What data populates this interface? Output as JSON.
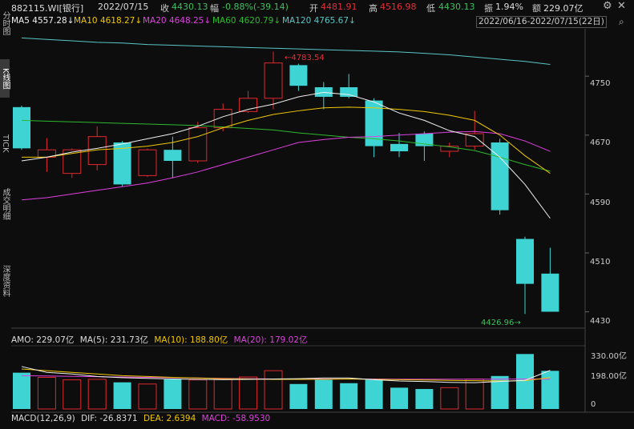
{
  "header": {
    "code": "882115.WI[银行]",
    "date": "2022/07/15",
    "close_label": "收",
    "close": "4430.13",
    "change_label": "幅",
    "change": "-0.88%(-39.14)",
    "open_label": "开",
    "open": "4481.91",
    "high_label": "高",
    "high": "4516.98",
    "low_label": "低",
    "low": "4430.13",
    "amp_label": "振",
    "amp": "1.94%",
    "amount_label": "额",
    "amount": "229.07亿"
  },
  "ma_legend": {
    "ma5": "MA5 4557.28↓",
    "ma10": "MA10 4618.27↓",
    "ma20": "MA20 4648.25↓",
    "ma60": "MA60 4620.79↓",
    "ma120": "MA120 4765.67↓"
  },
  "date_range": "2022/06/16-2022/07/15(22日)",
  "tabs": [
    "分时图",
    "K线图",
    "TICK",
    "成交明细",
    "深度资料"
  ],
  "price_axis": [
    "4750",
    "4670",
    "4590",
    "4510",
    "4430"
  ],
  "annotations": {
    "high": "4783.54",
    "low": "4426.96"
  },
  "amo_legend": {
    "amo": "AMO: 229.07亿",
    "ma5": "MA(5): 231.73亿",
    "ma10": "MA(10): 188.80亿",
    "ma20": "MA(20): 179.02亿"
  },
  "vol_axis": [
    "330.00亿",
    "198.00亿",
    "0"
  ],
  "macd_legend": {
    "name": "MACD(12,26,9)",
    "dif": "DIF: -26.8371",
    "dea": "DEA: 2.6394",
    "macd": "MACD: -58.9530"
  },
  "colors": {
    "up": "#e0282e",
    "down": "#3ed4d4",
    "ma5": "#f0f0f0",
    "ma10": "#f0c800",
    "ma20": "#e040e0",
    "ma60": "#2db92d",
    "ma120": "#59c6c6"
  },
  "chart_data": {
    "type": "candlestick",
    "price_ylim": [
      4410,
      4810
    ],
    "volume_ylim": [
      0,
      370
    ],
    "candles": [
      {
        "o": 4708,
        "c": 4652,
        "h": 4710,
        "l": 4650
      },
      {
        "o": 4640,
        "c": 4650,
        "h": 4666,
        "l": 4620
      },
      {
        "o": 4618,
        "c": 4650,
        "h": 4652,
        "l": 4612
      },
      {
        "o": 4630,
        "c": 4668,
        "h": 4682,
        "l": 4622
      },
      {
        "o": 4660,
        "c": 4603,
        "h": 4662,
        "l": 4600
      },
      {
        "o": 4615,
        "c": 4650,
        "h": 4652,
        "l": 4613
      },
      {
        "o": 4650,
        "c": 4635,
        "h": 4668,
        "l": 4612
      },
      {
        "o": 4635,
        "c": 4680,
        "h": 4688,
        "l": 4632
      },
      {
        "o": 4680,
        "c": 4705,
        "h": 4713,
        "l": 4675
      },
      {
        "o": 4702,
        "c": 4720,
        "h": 4730,
        "l": 4700
      },
      {
        "o": 4720,
        "c": 4768,
        "h": 4783.54,
        "l": 4705
      },
      {
        "o": 4765,
        "c": 4737,
        "h": 4767,
        "l": 4730
      },
      {
        "o": 4735,
        "c": 4722,
        "h": 4742,
        "l": 4705
      },
      {
        "o": 4735,
        "c": 4722,
        "h": 4753,
        "l": 4720
      },
      {
        "o": 4717,
        "c": 4655,
        "h": 4720,
        "l": 4640
      },
      {
        "o": 4658,
        "c": 4648,
        "h": 4673,
        "l": 4640
      },
      {
        "o": 4672,
        "c": 4655,
        "h": 4675,
        "l": 4635
      },
      {
        "o": 4648,
        "c": 4655,
        "h": 4660,
        "l": 4640
      },
      {
        "o": 4655,
        "c": 4672,
        "h": 4703,
        "l": 4650
      },
      {
        "o": 4660,
        "c": 4568,
        "h": 4665,
        "l": 4562
      },
      {
        "o": 4529,
        "c": 4468,
        "h": 4532,
        "l": 4426.96
      },
      {
        "o": 4481.91,
        "c": 4430.13,
        "h": 4516.98,
        "l": 4430.13
      }
    ],
    "ma5": [
      4635,
      4640,
      4647,
      4652,
      4658,
      4665,
      4672,
      4682,
      4695,
      4705,
      4712,
      4722,
      4728,
      4725,
      4715,
      4700,
      4690,
      4676,
      4668,
      4640,
      4603,
      4557
    ],
    "ma10": [
      4640,
      4640,
      4645,
      4650,
      4652,
      4655,
      4660,
      4668,
      4680,
      4690,
      4698,
      4703,
      4707,
      4708,
      4707,
      4705,
      4702,
      4697,
      4690,
      4670,
      4642,
      4618
    ],
    "ma20": [
      4582,
      4585,
      4590,
      4595,
      4600,
      4605,
      4612,
      4620,
      4630,
      4640,
      4650,
      4660,
      4664,
      4667,
      4668,
      4670,
      4672,
      4674,
      4675,
      4672,
      4662,
      4648
    ],
    "ma60": [
      4690,
      4689,
      4688,
      4687,
      4686,
      4685,
      4684,
      4683,
      4681,
      4679,
      4677,
      4673,
      4670,
      4667,
      4665,
      4662,
      4658,
      4654,
      4649,
      4640,
      4630,
      4621
    ],
    "ma120": [
      4802,
      4800,
      4798,
      4796,
      4795,
      4793,
      4792,
      4791,
      4790,
      4789,
      4788,
      4787,
      4786,
      4785,
      4784,
      4783,
      4781,
      4779,
      4776,
      4773,
      4770,
      4766
    ],
    "volume": [
      218,
      190,
      175,
      178,
      160,
      150,
      178,
      175,
      178,
      192,
      230,
      150,
      175,
      155,
      175,
      128,
      120,
      128,
      180,
      198,
      330,
      229.07
    ],
    "vol_ma5": [
      255,
      220,
      210,
      195,
      188,
      184,
      180,
      178,
      176,
      178,
      180,
      182,
      186,
      186,
      176,
      168,
      165,
      160,
      158,
      165,
      172,
      231.73
    ],
    "vol_ma10": [
      240,
      230,
      220,
      210,
      200,
      195,
      190,
      186,
      182,
      180,
      178,
      178,
      178,
      180,
      178,
      176,
      174,
      172,
      170,
      168,
      170,
      188.8
    ],
    "vol_ma20": [
      200,
      198,
      196,
      194,
      192,
      190,
      188,
      186,
      184,
      182,
      180,
      180,
      180,
      180,
      180,
      179,
      179,
      179,
      179,
      179,
      180,
      179.02
    ]
  }
}
